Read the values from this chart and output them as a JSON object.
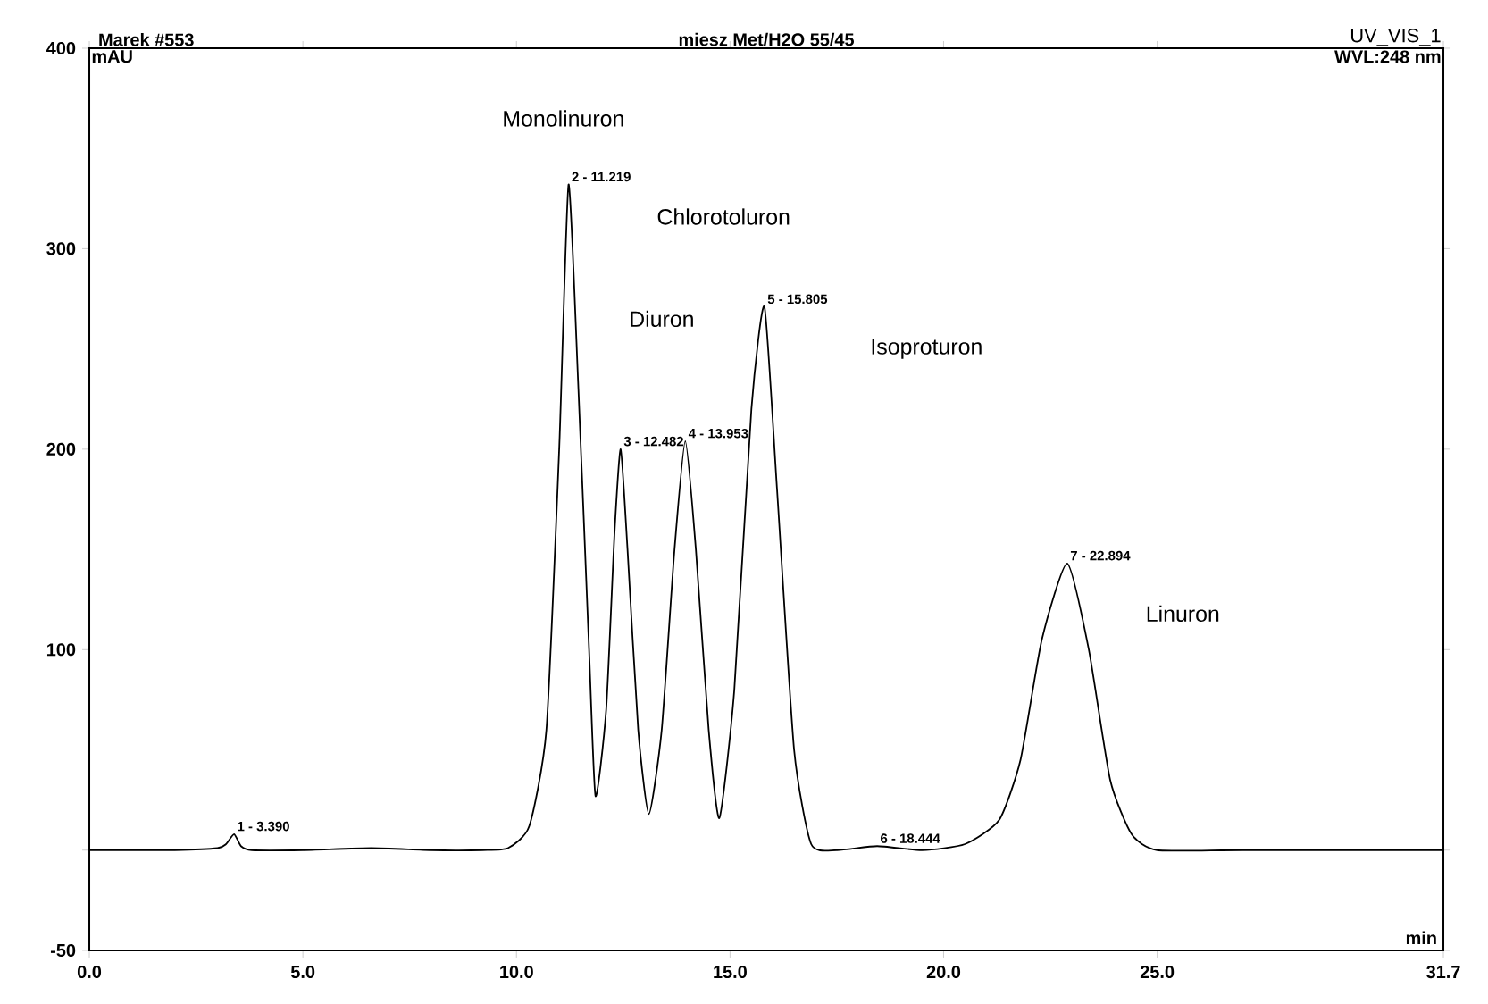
{
  "chart_data": {
    "type": "line",
    "title": "miesz Met/H2O 55/45",
    "xlabel": "min",
    "ylabel": "mAU",
    "x": [
      0,
      1,
      2,
      3.0,
      3.2,
      3.39,
      3.55,
      3.8,
      5,
      6.6,
      8,
      9.2,
      9.8,
      10.3,
      10.7,
      11.0,
      11.219,
      11.45,
      11.7,
      11.85,
      12.1,
      12.3,
      12.44,
      12.6,
      12.85,
      13.1,
      13.4,
      13.7,
      13.953,
      14.2,
      14.5,
      14.75,
      15.1,
      15.5,
      15.805,
      16.1,
      16.5,
      16.9,
      17.5,
      18.444,
      19.5,
      20.5,
      21.3,
      21.8,
      22.3,
      22.894,
      23.4,
      23.9,
      24.4,
      25,
      27,
      31.7
    ],
    "series": [
      {
        "color": "#000000",
        "values": [
          0,
          0,
          0,
          1,
          3,
          8,
          2,
          0,
          0,
          1,
          0,
          0,
          1,
          12,
          60,
          200,
          332,
          230,
          100,
          27,
          70,
          160,
          200,
          150,
          60,
          18,
          60,
          150,
          204,
          150,
          60,
          16,
          80,
          220,
          271,
          180,
          50,
          3,
          0,
          2,
          0,
          3,
          15,
          45,
          105,
          143,
          100,
          35,
          8,
          0,
          0,
          0
        ]
      }
    ],
    "xlim": [
      0,
      31.7
    ],
    "ylim": [
      -50,
      400
    ],
    "xticks": [
      {
        "value": 0,
        "label": "0.0"
      },
      {
        "value": 5,
        "label": "5.0"
      },
      {
        "value": 10,
        "label": "10.0"
      },
      {
        "value": 15,
        "label": "15.0"
      },
      {
        "value": 20,
        "label": "20.0"
      },
      {
        "value": 25,
        "label": "25.0"
      },
      31.7
    ],
    "yticks": [
      -50,
      {
        "value": 0,
        "label": null
      },
      100,
      200,
      300,
      400
    ],
    "marker": "none",
    "line_style": "solid",
    "grid": false,
    "annotations": [
      "Marek #553",
      "UV_VIS_1",
      "WVL:248 nm",
      {
        "text": "1 - 3.390",
        "x": 3.39,
        "y": 8
      },
      {
        "text": "2 - 11.219",
        "x": 11.219,
        "y": 332
      },
      {
        "text": "3 - 12.482",
        "x": 12.44,
        "y": 200
      },
      {
        "text": "4 - 13.953",
        "x": 13.953,
        "y": 204
      },
      {
        "text": "5 - 15.805",
        "x": 15.805,
        "y": 271
      },
      {
        "text": "6 - 18.444",
        "x": 18.444,
        "y": 2
      },
      {
        "text": "7 - 22.894",
        "x": 22.894,
        "y": 143
      },
      "Monolinuron",
      "Chlorotoluron",
      "Diuron",
      "Isoproturon",
      "Linuron"
    ]
  }
}
